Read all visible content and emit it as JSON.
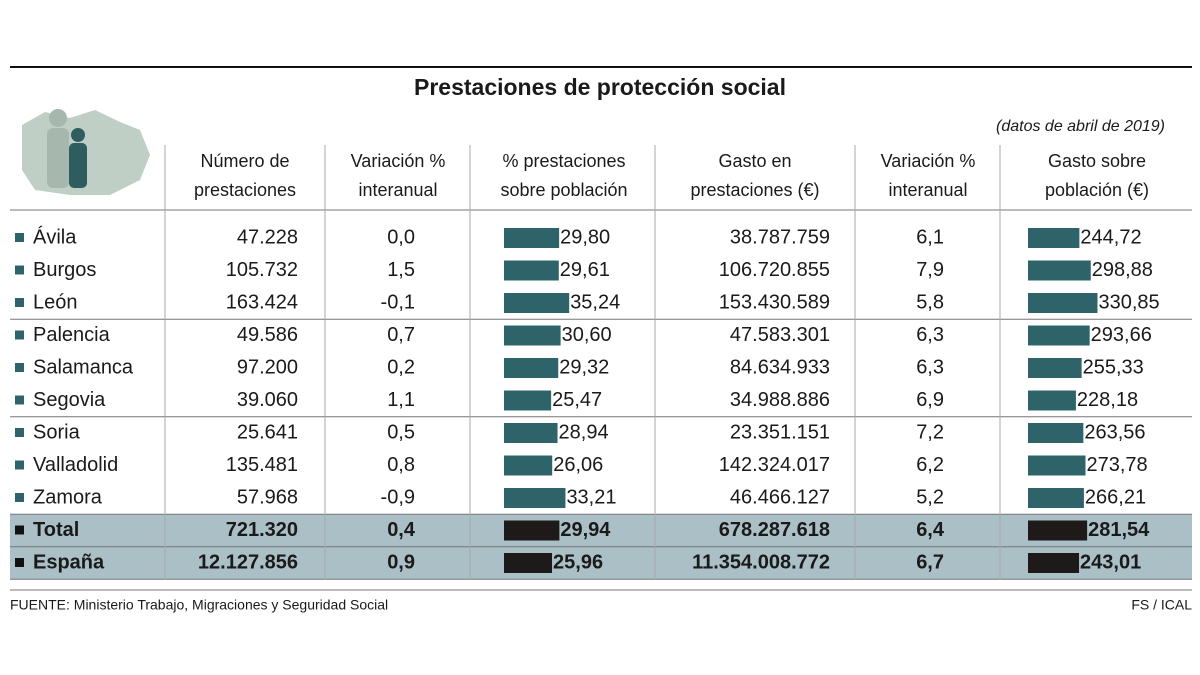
{
  "title": "Prestaciones de protección social",
  "subtitle": "(datos de abril de 2019)",
  "table": {
    "columns": [
      [
        "Número de",
        "prestaciones"
      ],
      [
        "Variación %",
        "interanual"
      ],
      [
        "% prestaciones",
        "sobre población"
      ],
      [
        "Gasto en",
        "prestaciones (€)"
      ],
      [
        "Variación %",
        "interanual"
      ],
      [
        "Gasto sobre",
        "población (€)"
      ]
    ],
    "rows": [
      [
        "Ávila",
        "47.228",
        "0,0",
        "29,80",
        "38.787.759",
        "6,1",
        "244,72"
      ],
      [
        "Burgos",
        "105.732",
        "1,5",
        "29,61",
        "106.720.855",
        "7,9",
        "298,88"
      ],
      [
        "León",
        "163.424",
        "-0,1",
        "35,24",
        "153.430.589",
        "5,8",
        "330,85"
      ],
      [
        "Palencia",
        "49.586",
        "0,7",
        "30,60",
        "47.583.301",
        "6,3",
        "293,66"
      ],
      [
        "Salamanca",
        "97.200",
        "0,2",
        "29,32",
        "84.634.933",
        "6,3",
        "255,33"
      ],
      [
        "Segovia",
        "39.060",
        "1,1",
        "25,47",
        "34.988.886",
        "6,9",
        "228,18"
      ],
      [
        "Soria",
        "25.641",
        "0,5",
        "28,94",
        "23.351.151",
        "7,2",
        "263,56"
      ],
      [
        "Valladolid",
        "135.481",
        "0,8",
        "26,06",
        "142.324.017",
        "6,2",
        "273,78"
      ],
      [
        "Zamora",
        "57.968",
        "-0,9",
        "33,21",
        "46.466.127",
        "5,2",
        "266,21"
      ]
    ],
    "total_rows": [
      [
        "Total",
        "721.320",
        "0,4",
        "29,94",
        "678.287.618",
        "6,4",
        "281,54"
      ],
      [
        "España",
        "12.127.856",
        "0,9",
        "25,96",
        "11.354.008.772",
        "6,7",
        "243,01"
      ]
    ]
  },
  "footer": {
    "source": "FUENTE: Ministerio Trabajo, Migraciones y Seguridad Social",
    "credit": "FS / ICAL"
  }
}
